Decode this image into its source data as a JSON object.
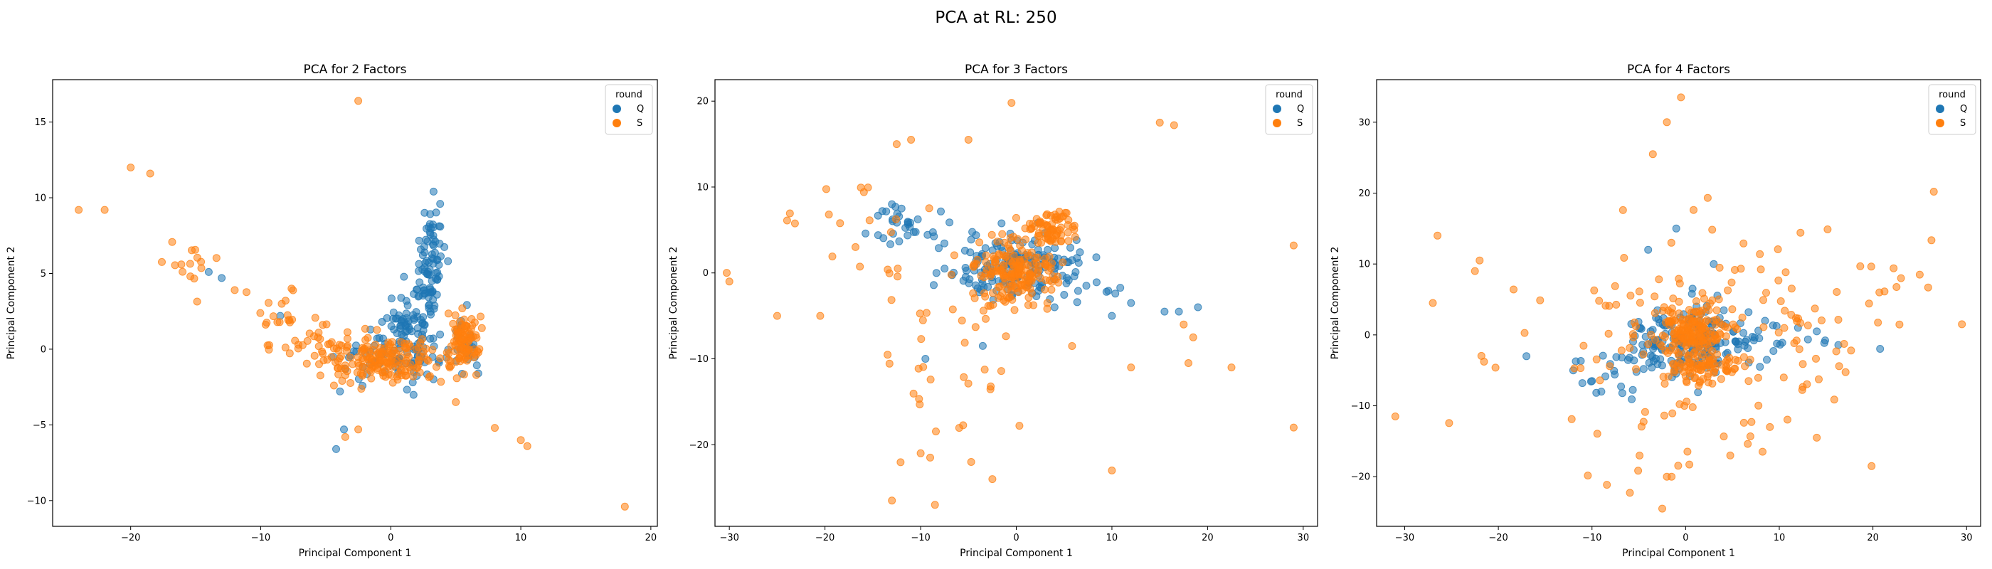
{
  "figure": {
    "suptitle": "PCA at RL: 250"
  },
  "colors": {
    "Q": "#1f77b4",
    "S": "#ff7f0e"
  },
  "chart_data": [
    {
      "type": "scatter",
      "title": "PCA for 2 Factors",
      "xlabel": "Principal Component 1",
      "ylabel": "Principal Component 2",
      "xlim": [
        -26,
        20.5
      ],
      "ylim": [
        -11.7,
        17.8
      ],
      "xticks": [
        -20,
        -10,
        0,
        10,
        20
      ],
      "yticks": [
        -10,
        -5,
        0,
        5,
        10,
        15
      ],
      "grid": false,
      "legend": {
        "title": "round",
        "position": "top-right",
        "entries": [
          "Q",
          "S"
        ]
      },
      "series": [
        {
          "name": "Q",
          "color": "#1f77b4",
          "clusters": [
            {
              "cx": 3.0,
              "cy": 5.5,
              "sx": 0.6,
              "sy": 2.0,
              "n": 90
            },
            {
              "cx": 1.5,
              "cy": 1.5,
              "sx": 0.9,
              "sy": 1.2,
              "n": 60
            },
            {
              "cx": 0.0,
              "cy": -0.5,
              "sx": 2.0,
              "sy": 0.8,
              "n": 70
            },
            {
              "cx": 5.8,
              "cy": 0.3,
              "sx": 0.7,
              "sy": 1.2,
              "n": 25
            }
          ],
          "points": [
            [
              3.8,
              9.6
            ],
            [
              -4.2,
              -6.6
            ],
            [
              -3.6,
              -5.3
            ],
            [
              -14.0,
              5.1
            ],
            [
              -13.0,
              4.7
            ],
            [
              -8.5,
              2.2
            ]
          ]
        },
        {
          "name": "S",
          "color": "#ff7f0e",
          "clusters": [
            {
              "cx": -0.3,
              "cy": -0.8,
              "sx": 2.2,
              "sy": 0.7,
              "n": 160
            },
            {
              "cx": -5.0,
              "cy": 0.3,
              "sx": 2.0,
              "sy": 0.6,
              "n": 40
            },
            {
              "cx": 5.6,
              "cy": 0.5,
              "sx": 0.6,
              "sy": 1.0,
              "n": 90
            },
            {
              "cx": -15.5,
              "cy": 5.5,
              "sx": 1.2,
              "sy": 0.8,
              "n": 15
            },
            {
              "cx": -9.0,
              "cy": 2.4,
              "sx": 1.5,
              "sy": 0.8,
              "n": 18
            }
          ],
          "points": [
            [
              -2.5,
              16.4
            ],
            [
              -20.0,
              12.0
            ],
            [
              -18.5,
              11.6
            ],
            [
              -24.0,
              9.2
            ],
            [
              -22.0,
              9.2
            ],
            [
              -12.0,
              3.9
            ],
            [
              -3.5,
              -5.8
            ],
            [
              -2.5,
              -5.3
            ],
            [
              5.0,
              -3.5
            ],
            [
              8.0,
              -5.2
            ],
            [
              10.0,
              -6.0
            ],
            [
              10.5,
              -6.4
            ],
            [
              18.0,
              -10.4
            ],
            [
              5.5,
              2.7
            ]
          ]
        }
      ]
    },
    {
      "type": "scatter",
      "title": "PCA for 3 Factors",
      "xlabel": "Principal Component 1",
      "ylabel": "Principal Component 2",
      "xlim": [
        -31.5,
        31.5
      ],
      "ylim": [
        -29.5,
        22.5
      ],
      "xticks": [
        -30,
        -20,
        -10,
        0,
        10,
        20,
        30
      ],
      "yticks": [
        -20,
        -10,
        0,
        10,
        20
      ],
      "grid": false,
      "legend": {
        "title": "round",
        "position": "top-right",
        "entries": [
          "Q",
          "S"
        ]
      },
      "series": [
        {
          "name": "Q",
          "color": "#1f77b4",
          "clusters": [
            {
              "cx": 0.0,
              "cy": 0.5,
              "sx": 3.5,
              "sy": 2.0,
              "n": 160
            },
            {
              "cx": -10.0,
              "cy": 5.5,
              "sx": 2.5,
              "sy": 1.3,
              "n": 30
            },
            {
              "cx": 6.0,
              "cy": -1.0,
              "sx": 2.0,
              "sy": 1.5,
              "n": 15
            }
          ],
          "points": [
            [
              -13.0,
              8.0
            ],
            [
              -12.0,
              7.5
            ],
            [
              -14.0,
              7.2
            ],
            [
              -9.5,
              -10.0
            ],
            [
              -3.5,
              -8.5
            ],
            [
              10.0,
              -5.0
            ],
            [
              12.0,
              -3.5
            ],
            [
              15.5,
              -4.5
            ],
            [
              17.0,
              -4.5
            ],
            [
              19.0,
              -4.0
            ],
            [
              4.0,
              -4.0
            ]
          ]
        },
        {
          "name": "S",
          "color": "#ff7f0e",
          "clusters": [
            {
              "cx": 0.0,
              "cy": 0.0,
              "sx": 2.0,
              "sy": 2.0,
              "n": 170
            },
            {
              "cx": 3.5,
              "cy": 5.0,
              "sx": 1.3,
              "sy": 1.0,
              "n": 70
            },
            {
              "cx": -6.0,
              "cy": -8.0,
              "sx": 5.0,
              "sy": 7.0,
              "n": 45
            },
            {
              "cx": -16.0,
              "cy": 6.0,
              "sx": 5.0,
              "sy": 3.0,
              "n": 20
            }
          ],
          "points": [
            [
              -0.5,
              19.8
            ],
            [
              15.0,
              17.5
            ],
            [
              16.5,
              17.2
            ],
            [
              -11.0,
              15.5
            ],
            [
              -12.5,
              15.0
            ],
            [
              -5.0,
              15.5
            ],
            [
              29.0,
              3.2
            ],
            [
              29.0,
              -18.0
            ],
            [
              22.5,
              -11.0
            ],
            [
              12.0,
              -11.0
            ],
            [
              10.0,
              -23.0
            ],
            [
              -13.0,
              -26.5
            ],
            [
              -8.5,
              -27.0
            ],
            [
              -2.5,
              -24.0
            ],
            [
              -10.0,
              -21.0
            ],
            [
              -9.0,
              -21.5
            ],
            [
              -30.0,
              -1.0
            ],
            [
              -25.0,
              -5.0
            ],
            [
              -20.5,
              -5.0
            ],
            [
              17.5,
              -6.0
            ],
            [
              18.5,
              -7.5
            ],
            [
              18.0,
              -10.5
            ]
          ]
        }
      ]
    },
    {
      "type": "scatter",
      "title": "PCA for 4 Factors",
      "xlabel": "Principal Component 1",
      "ylabel": "Principal Component 2",
      "xlim": [
        -33.0,
        31.5
      ],
      "ylim": [
        -27.0,
        36.0
      ],
      "xticks": [
        -30,
        -20,
        -10,
        0,
        10,
        20,
        30
      ],
      "yticks": [
        -20,
        -10,
        0,
        10,
        20,
        30
      ],
      "grid": false,
      "legend": {
        "title": "round",
        "position": "top-right",
        "entries": [
          "Q",
          "S"
        ]
      },
      "series": [
        {
          "name": "Q",
          "color": "#1f77b4",
          "clusters": [
            {
              "cx": 0.0,
              "cy": -1.0,
              "sx": 3.0,
              "sy": 2.5,
              "n": 150
            },
            {
              "cx": 6.0,
              "cy": -1.5,
              "sx": 5.0,
              "sy": 1.5,
              "n": 30
            },
            {
              "cx": -6.0,
              "cy": -4.0,
              "sx": 4.0,
              "sy": 2.5,
              "n": 30
            }
          ],
          "points": [
            [
              -12.0,
              -5.0
            ],
            [
              -10.0,
              -6.5
            ],
            [
              -9.0,
              -8.0
            ],
            [
              12.0,
              1.0
            ],
            [
              14.0,
              0.5
            ],
            [
              -17.0,
              -3.0
            ],
            [
              -4.0,
              12.0
            ],
            [
              3.0,
              10.0
            ],
            [
              -1.0,
              15.0
            ]
          ]
        },
        {
          "name": "S",
          "color": "#ff7f0e",
          "clusters": [
            {
              "cx": 0.5,
              "cy": 0.5,
              "sx": 1.8,
              "sy": 2.2,
              "n": 150
            },
            {
              "cx": 2.0,
              "cy": -4.5,
              "sx": 2.0,
              "sy": 1.0,
              "n": 70
            },
            {
              "cx": 0.0,
              "cy": 0.0,
              "sx": 10.0,
              "sy": 9.0,
              "n": 140
            },
            {
              "cx": 14.0,
              "cy": 3.0,
              "sx": 6.0,
              "sy": 4.0,
              "n": 30
            }
          ],
          "points": [
            [
              -0.5,
              33.5
            ],
            [
              -2.0,
              30.0
            ],
            [
              -3.5,
              25.5
            ],
            [
              26.5,
              20.2
            ],
            [
              29.5,
              1.5
            ],
            [
              -31.0,
              -11.5
            ],
            [
              -2.0,
              -20.0
            ],
            [
              -1.5,
              -20.0
            ],
            [
              -2.5,
              -24.5
            ],
            [
              -26.5,
              14.0
            ],
            [
              -22.0,
              10.5
            ],
            [
              -22.5,
              9.0
            ],
            [
              -27.0,
              4.5
            ],
            [
              25.0,
              8.5
            ],
            [
              23.0,
              8.0
            ],
            [
              14.0,
              -14.5
            ],
            [
              9.0,
              -13.0
            ]
          ]
        }
      ]
    }
  ]
}
